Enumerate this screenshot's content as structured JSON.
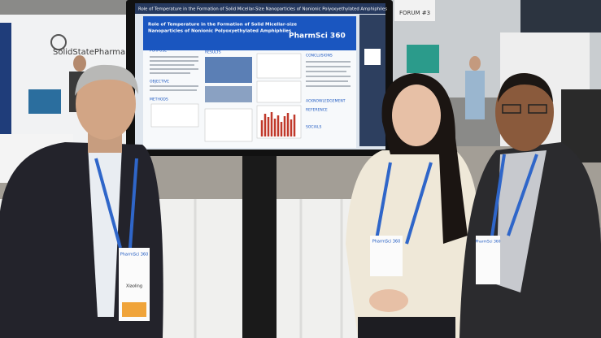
{
  "screen": {
    "header": "Role of Temperature in the Formation of Solid Micellar-Size Nanoparticles of Nonionic Polyoxyethylated Amphiphiles",
    "poster": {
      "title_line_1": "Role of Temperature in the Formation of Solid Micellar-size",
      "title_line_2": "Nanoparticles of Nonionic Polyoxyethylated Amphiphiles",
      "logo": "PharmSci 360",
      "sections": [
        "PURPOSE",
        "RESULTS",
        "CONCLUSIONS",
        "OBJECTIVE",
        "METHODS",
        "ACKNOWLEDGEMENT",
        "REFERENCE",
        "SOCIALS"
      ]
    }
  },
  "booth_sign": "SolidStatePharma",
  "banner": "FORUM #3",
  "badges": [
    {
      "event": "PharmSci 360",
      "name": "Xiaoling"
    },
    {
      "event": "PharmSci 360"
    },
    {
      "event": "PharmSci 360"
    }
  ]
}
